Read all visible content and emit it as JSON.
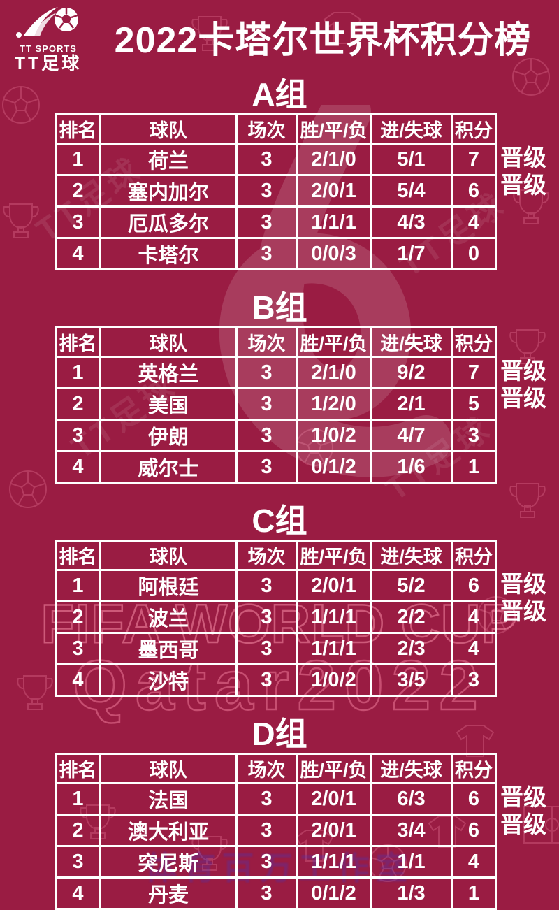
{
  "page": {
    "title": "2022卡塔尔世界杯积分榜",
    "background_color": "#9a1c43",
    "accent_text_color": "#ffffff"
  },
  "logo": {
    "icon": "soccer-ball-swoosh",
    "line1": "TT SPORTS",
    "line2": "TT足球"
  },
  "watermarks": {
    "fifa_line1": "FIFA WORLD CUP",
    "fifa_line2": "Qatar2022",
    "tt_repeat": "TT足球",
    "bottom": "体育百万工作室",
    "bottom_color": "#4a35b8",
    "outline_color": "#ff96af"
  },
  "table_headers": [
    "排名",
    "球队",
    "场次",
    "胜/平/负",
    "进/失球",
    "积分"
  ],
  "qualified_label": "晋级",
  "groups": [
    {
      "name": "A组",
      "rows": [
        {
          "rank": "1",
          "team": "荷兰",
          "played": "3",
          "wdl": "2/1/0",
          "goals": "5/1",
          "points": "7",
          "qualified": true
        },
        {
          "rank": "2",
          "team": "塞内加尔",
          "played": "3",
          "wdl": "2/0/1",
          "goals": "5/4",
          "points": "6",
          "qualified": true
        },
        {
          "rank": "3",
          "team": "厄瓜多尔",
          "played": "3",
          "wdl": "1/1/1",
          "goals": "4/3",
          "points": "4",
          "qualified": false
        },
        {
          "rank": "4",
          "team": "卡塔尔",
          "played": "3",
          "wdl": "0/0/3",
          "goals": "1/7",
          "points": "0",
          "qualified": false
        }
      ]
    },
    {
      "name": "B组",
      "rows": [
        {
          "rank": "1",
          "team": "英格兰",
          "played": "3",
          "wdl": "2/1/0",
          "goals": "9/2",
          "points": "7",
          "qualified": true
        },
        {
          "rank": "2",
          "team": "美国",
          "played": "3",
          "wdl": "1/2/0",
          "goals": "2/1",
          "points": "5",
          "qualified": true
        },
        {
          "rank": "3",
          "team": "伊朗",
          "played": "3",
          "wdl": "1/0/2",
          "goals": "4/7",
          "points": "3",
          "qualified": false
        },
        {
          "rank": "4",
          "team": "威尔士",
          "played": "3",
          "wdl": "0/1/2",
          "goals": "1/6",
          "points": "1",
          "qualified": false
        }
      ]
    },
    {
      "name": "C组",
      "rows": [
        {
          "rank": "1",
          "team": "阿根廷",
          "played": "3",
          "wdl": "2/0/1",
          "goals": "5/2",
          "points": "6",
          "qualified": true
        },
        {
          "rank": "2",
          "team": "波兰",
          "played": "3",
          "wdl": "1/1/1",
          "goals": "2/2",
          "points": "4",
          "qualified": true
        },
        {
          "rank": "3",
          "team": "墨西哥",
          "played": "3",
          "wdl": "1/1/1",
          "goals": "2/3",
          "points": "4",
          "qualified": false
        },
        {
          "rank": "4",
          "team": "沙特",
          "played": "3",
          "wdl": "1/0/2",
          "goals": "3/5",
          "points": "3",
          "qualified": false
        }
      ]
    },
    {
      "name": "D组",
      "rows": [
        {
          "rank": "1",
          "team": "法国",
          "played": "3",
          "wdl": "2/0/1",
          "goals": "6/3",
          "points": "6",
          "qualified": true
        },
        {
          "rank": "2",
          "team": "澳大利亚",
          "played": "3",
          "wdl": "2/0/1",
          "goals": "3/4",
          "points": "6",
          "qualified": true
        },
        {
          "rank": "3",
          "team": "突尼斯",
          "played": "3",
          "wdl": "1/1/1",
          "goals": "1/1",
          "points": "4",
          "qualified": false
        },
        {
          "rank": "4",
          "team": "丹麦",
          "played": "3",
          "wdl": "0/1/2",
          "goals": "1/3",
          "points": "1",
          "qualified": false
        }
      ]
    }
  ]
}
